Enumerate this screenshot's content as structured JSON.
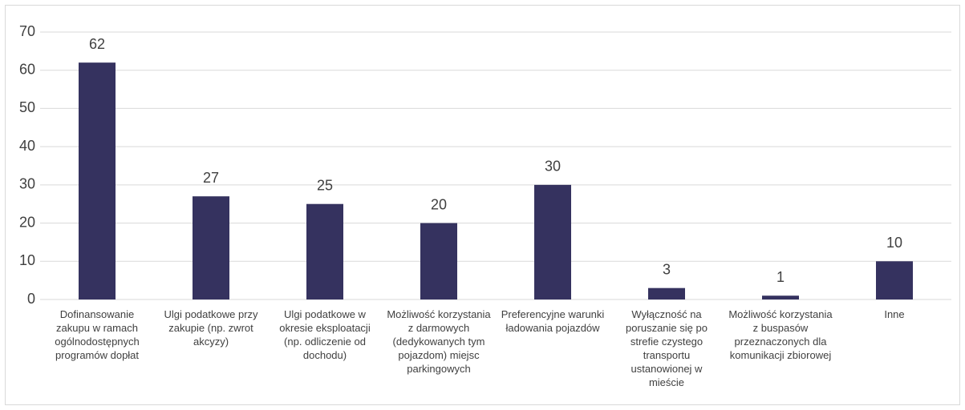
{
  "chart_data": {
    "type": "bar",
    "categories": [
      "Dofinansowanie zakupu w ramach ogólnodostępnych programów dopłat",
      "Ulgi podatkowe przy zakupie (np. zwrot akcyzy)",
      "Ulgi podatkowe w okresie eksploatacji (np. odliczenie od dochodu)",
      "Możliwość korzystania z darmowych (dedykowanych tym pojazdom) miejsc parkingowych",
      "Preferencyjne warunki ładowania pojazdów",
      "Wyłączność na poruszanie się po strefie czystego transportu ustanowionej w mieście",
      "Możliwość korzystania z buspasów przeznaczonych dla komunikacji zbiorowej",
      "Inne"
    ],
    "values": [
      62,
      27,
      25,
      20,
      30,
      3,
      1,
      10
    ],
    "color": "#35325f",
    "ylim": [
      0,
      70
    ],
    "yticks": [
      0,
      10,
      20,
      30,
      40,
      50,
      60,
      70
    ],
    "grid": true
  }
}
